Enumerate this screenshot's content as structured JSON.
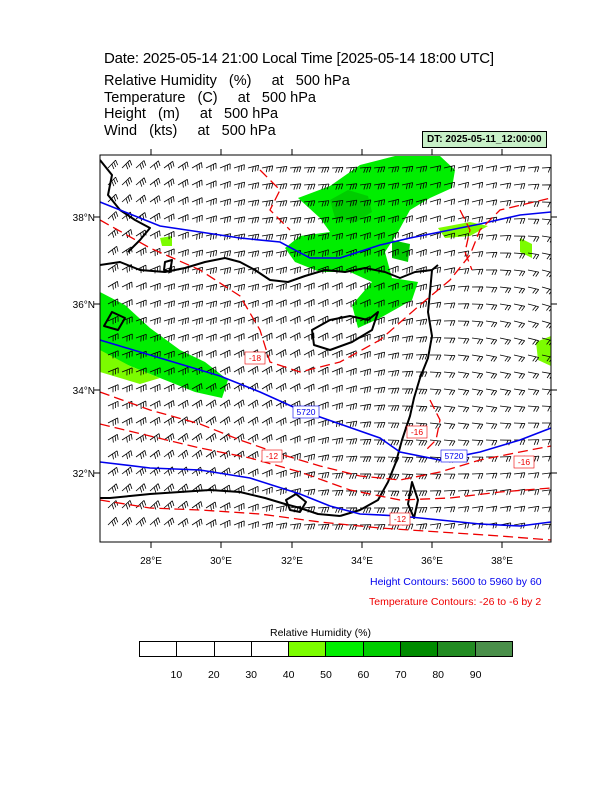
{
  "title": "Date: 2025-05-14  21:00 Local Time [2025-05-14  18:00 UTC]",
  "fields": [
    "Relative Humidity   (%)     at   500 hPa",
    "Temperature   (C)     at   500 hPa",
    "Height   (m)     at   500 hPa",
    "Wind   (kts)     at   500 hPa"
  ],
  "dt_badge": "DT: 2025-05-11_12:00:00",
  "map": {
    "lat_labels": [
      "38°N",
      "36°N",
      "34°N",
      "32°N"
    ],
    "lon_labels": [
      "28°E",
      "30°E",
      "32°E",
      "34°E",
      "36°E",
      "38°E"
    ],
    "height_contour_labels": [
      "5720",
      "5720"
    ],
    "temperature_contour_labels": [
      "-18",
      "-12",
      "-16",
      "-16",
      "-12"
    ],
    "colors": {
      "height": "#0000ee",
      "temperature": "#ee0000",
      "coast": "#000000"
    }
  },
  "legend": {
    "height_contours": "Height Contours: 5600 to 5960 by 60",
    "temperature_contours": "Temperature Contours: -26 to -6 by 2"
  },
  "colorbar": {
    "title": "Relative Humidity  (%)",
    "colors": [
      "#ffffff",
      "#ffffff",
      "#ffffff",
      "#ffffff",
      "#7cfc00",
      "#00ee00",
      "#00cd00",
      "#008b00",
      "#228b22",
      "#4a8f4a"
    ],
    "labels": [
      "10",
      "20",
      "30",
      "40",
      "50",
      "60",
      "70",
      "80",
      "90"
    ]
  }
}
